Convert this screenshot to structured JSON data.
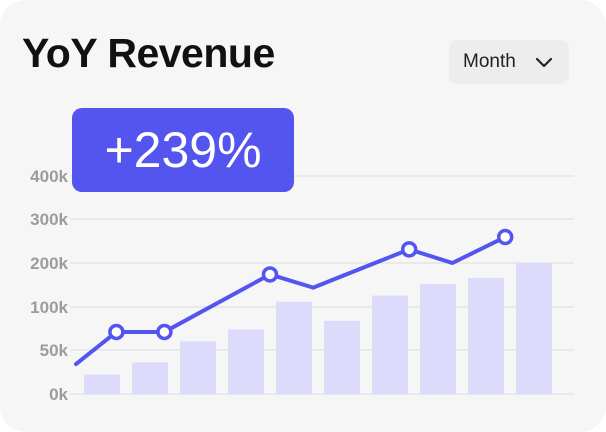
{
  "card": {
    "title": "YoY Revenue",
    "badge": "+239%",
    "period_select": {
      "value": "Month",
      "icon": "chevron-down-icon"
    }
  },
  "colors": {
    "accent": "#5454ef",
    "bar_fill": "#dddbfb",
    "card_bg": "#f6f6f7",
    "grid": "#e1e1e4",
    "tick_text": "#9c9ca0"
  },
  "chart_data": {
    "type": "bar",
    "title": "",
    "xlabel": "",
    "ylabel": "",
    "ylim": [
      0,
      400000
    ],
    "y_ticks": [
      {
        "value": 0,
        "label": "0k"
      },
      {
        "value": 50000,
        "label": "50k"
      },
      {
        "value": 100000,
        "label": "100k"
      },
      {
        "value": 200000,
        "label": "200k"
      },
      {
        "value": 300000,
        "label": "300k"
      },
      {
        "value": 400000,
        "label": "400k"
      }
    ],
    "grid": true,
    "series": [
      {
        "type": "bar",
        "values": [
          22000,
          36000,
          60000,
          74000,
          112000,
          84000,
          126000,
          152000,
          166000,
          200000
        ]
      },
      {
        "type": "line",
        "x_positions": [
          0,
          1.3,
          2.3,
          4.5,
          5.4,
          7.4,
          8.3,
          9.4
        ],
        "values": [
          34000,
          71000,
          71000,
          174000,
          144000,
          231000,
          200000,
          259000
        ],
        "markers": [
          false,
          true,
          true,
          true,
          false,
          true,
          false,
          true
        ]
      }
    ]
  }
}
